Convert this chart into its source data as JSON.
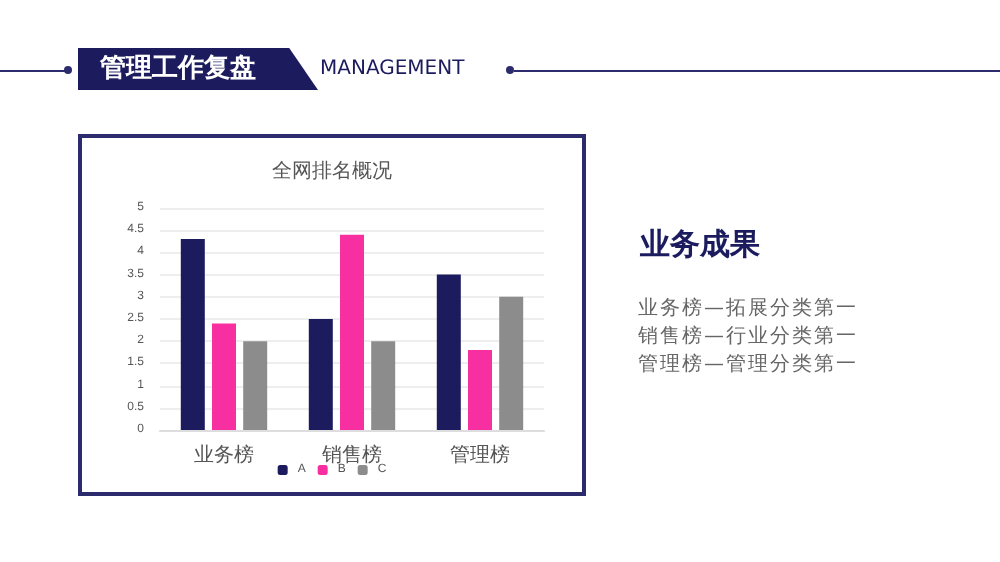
{
  "chart_data": {
    "type": "bar",
    "title": "全网排名概况",
    "annotations": [
      "管理工作复盘",
      "MANAGEMENT",
      "业务成果",
      "业务榜—拓展分类第一",
      "销售榜—行业分类第一",
      "管理榜—管理分类第一"
    ],
    "categories": [
      "业务榜",
      "销售榜",
      "管理榜"
    ],
    "series": [
      {
        "name": "A",
        "color": "#1b1b5e",
        "values": [
          4.3,
          2.5,
          3.5
        ]
      },
      {
        "name": "B",
        "color": "#f72fa0",
        "values": [
          2.4,
          4.4,
          1.8
        ]
      },
      {
        "name": "C",
        "color": "#8c8c8c",
        "values": [
          2,
          2,
          3
        ]
      }
    ],
    "ylim": [
      0,
      5
    ],
    "yticks": [
      0,
      0.5,
      1,
      1.5,
      2,
      2.5,
      3,
      3.5,
      4,
      4.5,
      5
    ],
    "grid": "y",
    "legend": "bottom"
  }
}
